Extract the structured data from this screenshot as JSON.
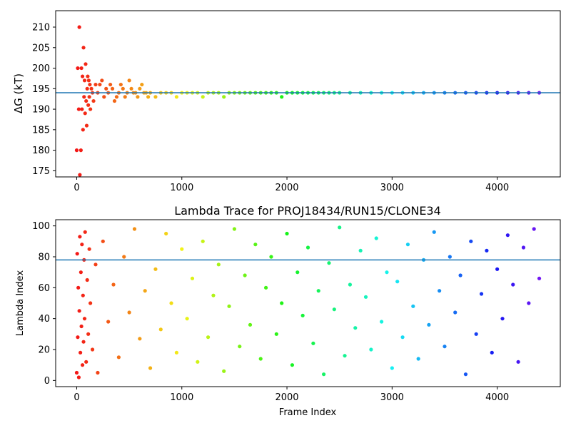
{
  "chart_data": [
    {
      "type": "scatter",
      "title": "",
      "xlabel": "",
      "ylabel": "ΔG (kT)",
      "xlim": [
        -200,
        4600
      ],
      "ylim": [
        173.5,
        214
      ],
      "xticks": [
        0,
        1000,
        2000,
        3000,
        4000
      ],
      "xtick_labels": [
        "0",
        "1000",
        "2000",
        "3000",
        "4000"
      ],
      "yticks": [
        175,
        180,
        185,
        190,
        195,
        200,
        205,
        210
      ],
      "ytick_labels": [
        "175",
        "180",
        "185",
        "190",
        "195",
        "200",
        "205",
        "210"
      ],
      "colormap": "rainbow (red at early frames → violet at late frames)",
      "hline": {
        "y": 194,
        "color": "#1f77b4"
      },
      "series": [
        {
          "x": [
            0,
            10,
            20,
            25,
            30,
            40,
            45,
            50,
            55,
            60,
            65,
            70,
            75,
            80,
            85,
            90,
            95,
            100,
            105,
            110,
            115,
            120,
            125,
            130,
            140,
            150,
            160,
            180,
            200,
            220,
            240,
            260,
            280,
            300,
            320,
            340,
            360,
            380,
            400,
            420,
            440,
            460,
            480,
            500,
            520,
            540,
            560,
            580,
            600,
            620,
            640,
            660,
            680,
            700,
            750,
            800,
            850,
            900,
            950,
            1000,
            1050,
            1100,
            1150,
            1200,
            1250,
            1300,
            1350,
            1400,
            1450,
            1500,
            1550,
            1600,
            1650,
            1700,
            1750,
            1800,
            1850,
            1900,
            1950,
            2000,
            2050,
            2100,
            2150,
            2200,
            2250,
            2300,
            2350,
            2400,
            2450,
            2500,
            2600,
            2700,
            2800,
            2900,
            3000,
            3100,
            3200,
            3300,
            3400,
            3500,
            3600,
            3700,
            3800,
            3900,
            4000,
            4100,
            4200,
            4300,
            4400
          ],
          "y": [
            180,
            200,
            190,
            210,
            174,
            180,
            200,
            190,
            198,
            185,
            205,
            193,
            197,
            189,
            201,
            192,
            186,
            195,
            198,
            191,
            197,
            193,
            196,
            190,
            195,
            194,
            192,
            196,
            194,
            196,
            197,
            193,
            195,
            194,
            196,
            195,
            192,
            193,
            194,
            196,
            195,
            193,
            194,
            197,
            195,
            194,
            194,
            193,
            195,
            196,
            194,
            194,
            193,
            194,
            193,
            194,
            194,
            194,
            193,
            194,
            194,
            194,
            194,
            193,
            194,
            194,
            194,
            193,
            194,
            194,
            194,
            194,
            194,
            194,
            194,
            194,
            194,
            194,
            193,
            194,
            194,
            194,
            194,
            194,
            194,
            194,
            194,
            194,
            194,
            194,
            194,
            194,
            194,
            194,
            194,
            194,
            194,
            194,
            194,
            194,
            194,
            194,
            194,
            194,
            194,
            194,
            194,
            194,
            194
          ]
        }
      ]
    },
    {
      "type": "scatter",
      "title": "Lambda Trace for PROJ18434/RUN15/CLONE34",
      "xlabel": "Frame Index",
      "ylabel": "Lambda Index",
      "xlim": [
        -200,
        4600
      ],
      "ylim": [
        -4,
        104
      ],
      "xticks": [
        0,
        1000,
        2000,
        3000,
        4000
      ],
      "xtick_labels": [
        "0",
        "1000",
        "2000",
        "3000",
        "4000"
      ],
      "yticks": [
        0,
        20,
        40,
        60,
        80,
        100
      ],
      "ytick_labels": [
        "0",
        "20",
        "40",
        "60",
        "80",
        "100"
      ],
      "colormap": "rainbow (red at early frames → violet at late frames)",
      "hline": {
        "y": 78,
        "color": "#1f77b4"
      },
      "series": [
        {
          "x": [
            0,
            5,
            10,
            15,
            20,
            25,
            30,
            35,
            40,
            45,
            50,
            55,
            60,
            65,
            70,
            75,
            80,
            90,
            100,
            110,
            120,
            130,
            150,
            180,
            200,
            250,
            300,
            350,
            400,
            450,
            500,
            550,
            600,
            650,
            700,
            750,
            800,
            850,
            900,
            950,
            1000,
            1050,
            1100,
            1150,
            1200,
            1250,
            1300,
            1350,
            1400,
            1450,
            1500,
            1550,
            1600,
            1650,
            1700,
            1750,
            1800,
            1850,
            1900,
            1950,
            2000,
            2050,
            2100,
            2150,
            2200,
            2250,
            2300,
            2350,
            2400,
            2450,
            2500,
            2550,
            2600,
            2650,
            2700,
            2750,
            2800,
            2850,
            2900,
            2950,
            3000,
            3050,
            3100,
            3150,
            3200,
            3250,
            3300,
            3350,
            3400,
            3450,
            3500,
            3550,
            3600,
            3650,
            3700,
            3750,
            3800,
            3850,
            3900,
            3950,
            4000,
            4050,
            4100,
            4150,
            4200,
            4250,
            4300,
            4350,
            4400
          ],
          "y": [
            5,
            82,
            28,
            60,
            2,
            45,
            93,
            18,
            70,
            35,
            88,
            10,
            55,
            25,
            78,
            40,
            96,
            12,
            65,
            30,
            85,
            50,
            20,
            75,
            5,
            90,
            38,
            62,
            15,
            80,
            44,
            98,
            27,
            58,
            8,
            72,
            33,
            95,
            50,
            18,
            85,
            40,
            66,
            12,
            90,
            28,
            55,
            75,
            6,
            48,
            98,
            22,
            68,
            36,
            88,
            14,
            60,
            80,
            30,
            50,
            95,
            10,
            70,
            42,
            86,
            24,
            58,
            4,
            76,
            46,
            99,
            16,
            62,
            34,
            84,
            54,
            20,
            92,
            38,
            70,
            8,
            64,
            28,
            88,
            48,
            14,
            78,
            36,
            96,
            58,
            22,
            80,
            44,
            68,
            4,
            90,
            30,
            56,
            84,
            18,
            72,
            40,
            94,
            62,
            12,
            86,
            50,
            98,
            66
          ]
        }
      ]
    }
  ]
}
